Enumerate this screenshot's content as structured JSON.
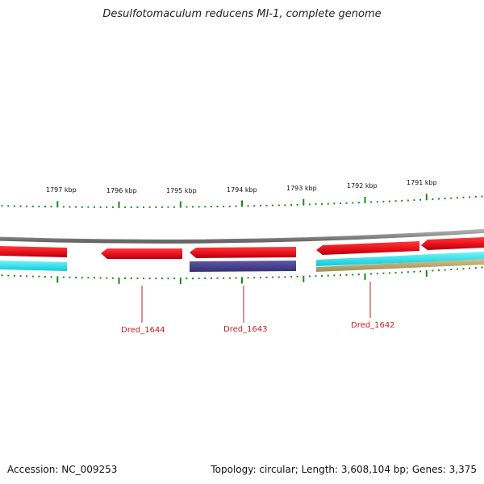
{
  "title": "Desulfotomaculum reducens MI-1, complete genome",
  "footer": {
    "accession": "Accession: NC_009253",
    "summary": "Topology: circular; Length: 3,608,104 bp; Genes: 3,375"
  },
  "scale_labels": [
    "1797 kbp",
    "1796 kbp",
    "1795 kbp",
    "1794 kbp",
    "1793 kbp",
    "1792 kbp",
    "1791 kbp"
  ],
  "gene_labels": [
    "Dred_1644",
    "Dred_1643",
    "Dred_1642"
  ],
  "colors": {
    "forward_gene": "#e8101a",
    "reverse_gene": "#e8101a",
    "backbone": "#8a8a8a",
    "cyan_track": "#22e8ee",
    "purple_track": "#4a4590",
    "olive_track": "#b8a870",
    "tick": "#1a8a1a",
    "label_line": "#c81e1e"
  }
}
